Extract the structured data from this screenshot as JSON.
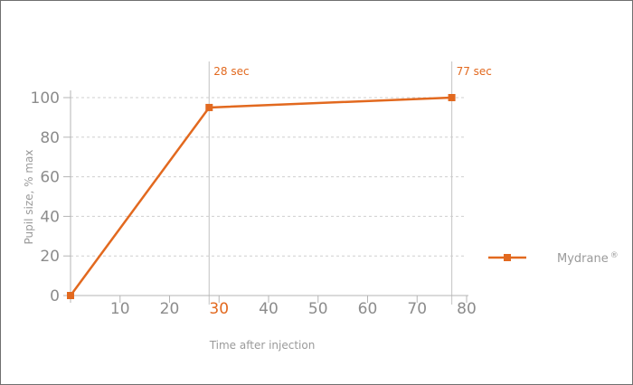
{
  "chart_data": {
    "type": "line",
    "title": "",
    "xlabel": "Time after injection",
    "ylabel": "Pupil size, % max",
    "xlim": [
      0,
      80
    ],
    "ylim": [
      0,
      100
    ],
    "x_ticks": [
      10,
      20,
      30,
      40,
      50,
      60,
      70,
      80
    ],
    "y_ticks": [
      0,
      20,
      40,
      60,
      80,
      100
    ],
    "highlighted_x_tick": 30,
    "grid": {
      "horizontal": true,
      "style": "dashed"
    },
    "series": [
      {
        "name": "Mydrane",
        "name_suffix": "®",
        "color": "#e2691f",
        "marker": "square",
        "x": [
          0,
          28,
          77
        ],
        "y": [
          0,
          95,
          100
        ]
      }
    ],
    "annotations": [
      {
        "x": 28,
        "label": "28 sec"
      },
      {
        "x": 77,
        "label": "77 sec"
      }
    ],
    "legend_position": "right"
  }
}
